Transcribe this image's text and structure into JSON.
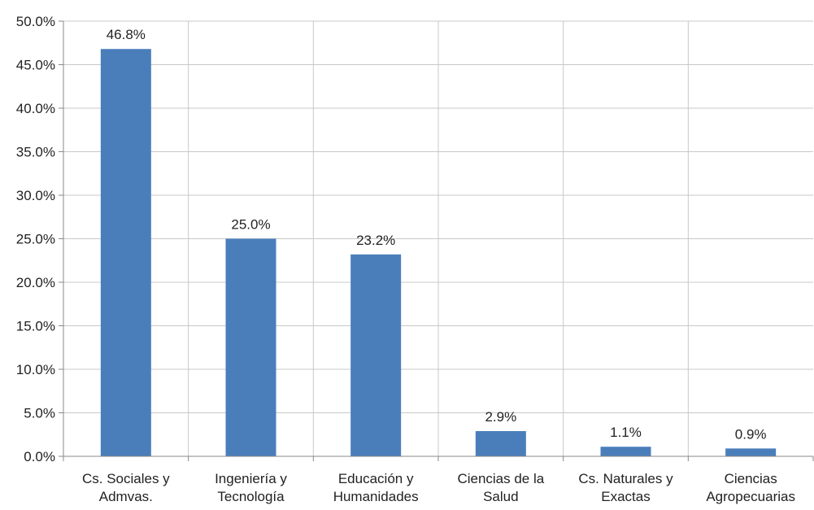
{
  "chart_data": {
    "type": "bar",
    "categories": [
      [
        "Cs. Sociales y",
        "Admvas."
      ],
      [
        "Ingeniería y",
        "Tecnología"
      ],
      [
        "Educación y",
        "Humanidades"
      ],
      [
        "Ciencias de la",
        "Salud"
      ],
      [
        "Cs. Naturales y",
        "Exactas"
      ],
      [
        "Ciencias",
        "Agropecuarias"
      ]
    ],
    "values": [
      46.8,
      25.0,
      23.2,
      2.9,
      1.1,
      0.9
    ],
    "data_labels": [
      "46.8%",
      "25.0%",
      "23.2%",
      "2.9%",
      "1.1%",
      "0.9%"
    ],
    "y_ticks": [
      "0.0%",
      "5.0%",
      "10.0%",
      "15.0%",
      "20.0%",
      "25.0%",
      "30.0%",
      "35.0%",
      "40.0%",
      "45.0%",
      "50.0%"
    ],
    "ylim": [
      0,
      50
    ],
    "bar_color": "#4a7ebb",
    "grid": true,
    "legend": "none"
  }
}
